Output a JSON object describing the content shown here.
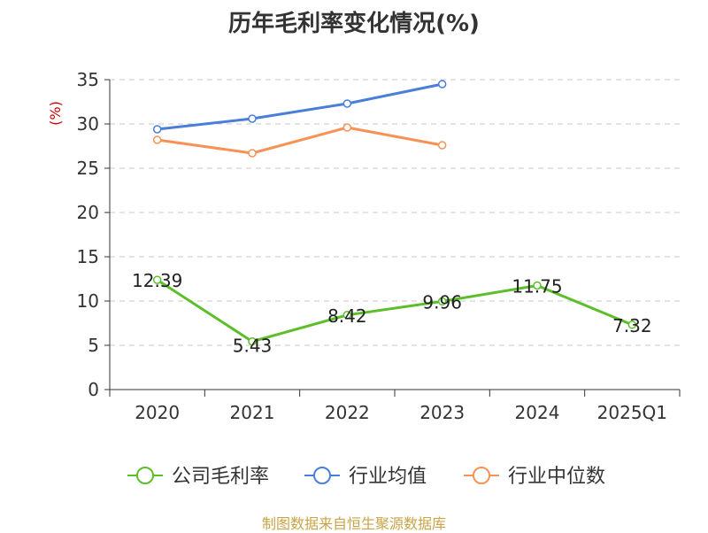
{
  "chart_data": {
    "type": "line",
    "title": "历年毛利率变化情况(%)",
    "ylabel": "(%)",
    "xlabel": "",
    "categories": [
      "2020",
      "2021",
      "2022",
      "2023",
      "2024",
      "2025Q1"
    ],
    "ylim": [
      0,
      35
    ],
    "yticks": [
      0,
      5,
      10,
      15,
      20,
      25,
      30,
      35
    ],
    "grid": true,
    "legend_position": "bottom",
    "series": [
      {
        "name": "公司毛利率",
        "color": "#5cbf2a",
        "values": [
          12.39,
          5.43,
          8.42,
          9.96,
          11.75,
          7.32
        ],
        "labels": [
          "12.39",
          "5.43",
          "8.42",
          "9.96",
          "11.75",
          "7.32"
        ]
      },
      {
        "name": "行业均值",
        "color": "#4a7fd8",
        "values": [
          29.4,
          30.6,
          32.3,
          34.5,
          null,
          null
        ]
      },
      {
        "name": "行业中位数",
        "color": "#f79256",
        "values": [
          28.2,
          26.7,
          29.6,
          27.6,
          null,
          null
        ]
      }
    ],
    "source": "制图数据来自恒生聚源数据库"
  }
}
